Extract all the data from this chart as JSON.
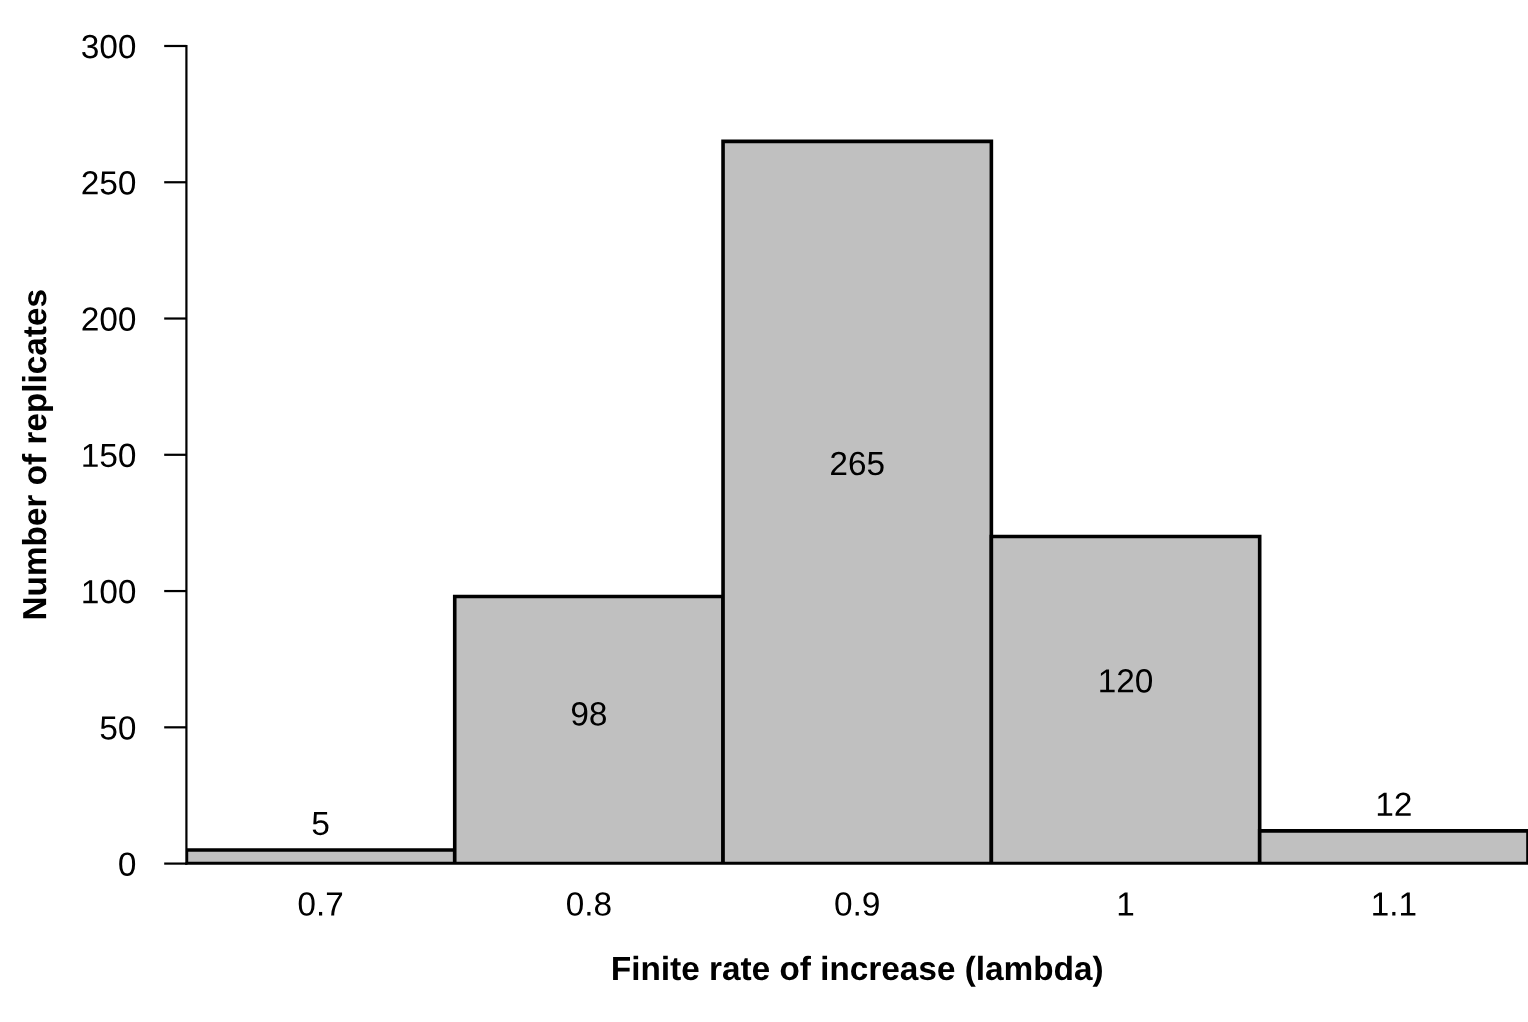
{
  "chart_data": {
    "type": "bar",
    "xlabel": "Finite rate of increase (lambda)",
    "ylabel": "Number of replicates",
    "categories": [
      "0.7",
      "0.8",
      "0.9",
      "1",
      "1.1"
    ],
    "values": [
      5,
      98,
      265,
      120,
      12
    ],
    "color": "#c0c0c0",
    "ylim": [
      0,
      300
    ],
    "yticks": [
      0,
      50,
      100,
      150,
      200,
      250,
      300
    ],
    "grid": false,
    "data_labels": true
  }
}
